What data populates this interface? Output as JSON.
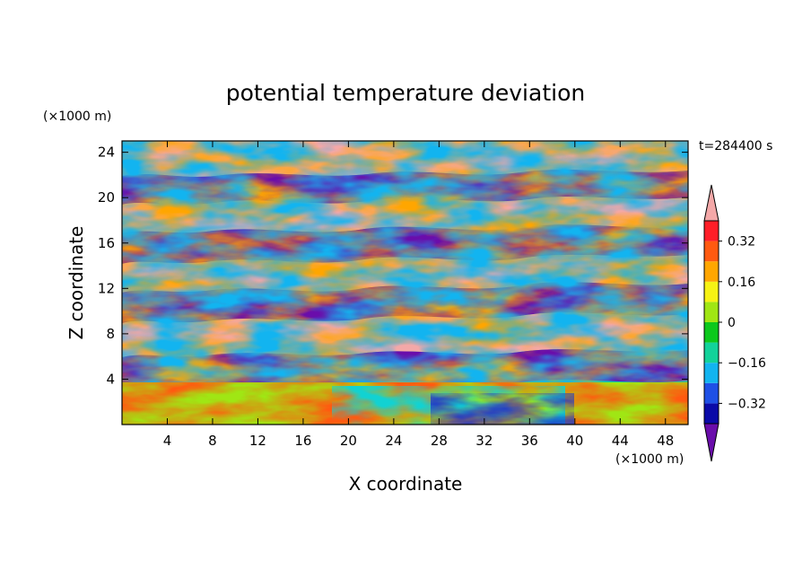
{
  "chart_data": {
    "type": "heatmap",
    "title": "potential temperature deviation",
    "xlabel": "X coordinate",
    "ylabel": "Z coordinate",
    "x_unit": "(×1000 m)",
    "y_unit": "(×1000 m)",
    "time_label": "t=284400 s",
    "xlim": [
      0,
      50
    ],
    "ylim": [
      0,
      25
    ],
    "x_ticks": [
      4,
      8,
      12,
      16,
      20,
      24,
      28,
      32,
      36,
      40,
      44,
      48
    ],
    "y_ticks": [
      4,
      8,
      12,
      16,
      20,
      24
    ],
    "x_tick_labels": [
      "4",
      "8",
      "12",
      "16",
      "20",
      "24",
      "28",
      "32",
      "36",
      "40",
      "44",
      "48"
    ],
    "y_tick_labels": [
      "4",
      "8",
      "12",
      "16",
      "20",
      "24"
    ],
    "colorbar": {
      "levels": [
        -0.4,
        -0.32,
        -0.24,
        -0.16,
        -0.08,
        0,
        0.08,
        0.16,
        0.24,
        0.32,
        0.4
      ],
      "colors": [
        "#6a0dab",
        "#0a0aa8",
        "#1e50e6",
        "#12b4f0",
        "#12d29a",
        "#0cc81c",
        "#a0e614",
        "#f6f214",
        "#ffa600",
        "#ff5a10",
        "#ff1e28",
        "#f4a8a8"
      ],
      "labels": [
        {
          "value": 0.32,
          "text": "0.32"
        },
        {
          "value": 0.16,
          "text": "0.16"
        },
        {
          "value": 0,
          "text": "0"
        },
        {
          "value": -0.16,
          "text": "−0.16"
        },
        {
          "value": -0.32,
          "text": "−0.32"
        }
      ],
      "extend": "both"
    },
    "field_description": "turbulent layered field; alternating positive (pink) and negative (purple) bands above z=4 km, mixed boundary layer below"
  }
}
